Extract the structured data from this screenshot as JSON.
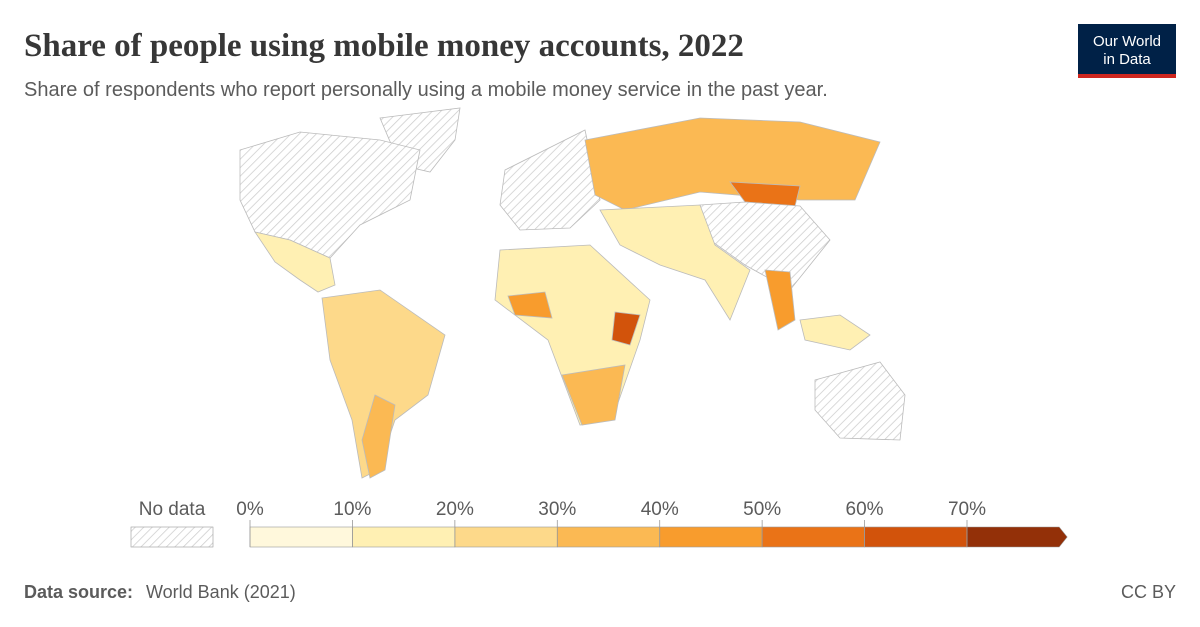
{
  "header": {
    "title": "Share of people using mobile money accounts, 2022",
    "subtitle": "Share of respondents who report personally using a mobile money service in the past year.",
    "logo": [
      "Our World",
      "in Data"
    ]
  },
  "legend": {
    "no_data_label": "No data",
    "ticks": [
      {
        "value": 0,
        "label": "0%"
      },
      {
        "value": 10,
        "label": "10%"
      },
      {
        "value": 20,
        "label": "20%"
      },
      {
        "value": 30,
        "label": "30%"
      },
      {
        "value": 40,
        "label": "40%"
      },
      {
        "value": 50,
        "label": "50%"
      },
      {
        "value": 60,
        "label": "60%"
      },
      {
        "value": 70,
        "label": "70%"
      }
    ],
    "colors": [
      "#fff8dc",
      "#fff0b3",
      "#fdd98a",
      "#fbb953",
      "#f89c2d",
      "#ea7317",
      "#d2530b",
      "#933008"
    ]
  },
  "footer": {
    "source_label": "Data source:",
    "source": "World Bank (2021)",
    "license": "CC BY"
  }
}
